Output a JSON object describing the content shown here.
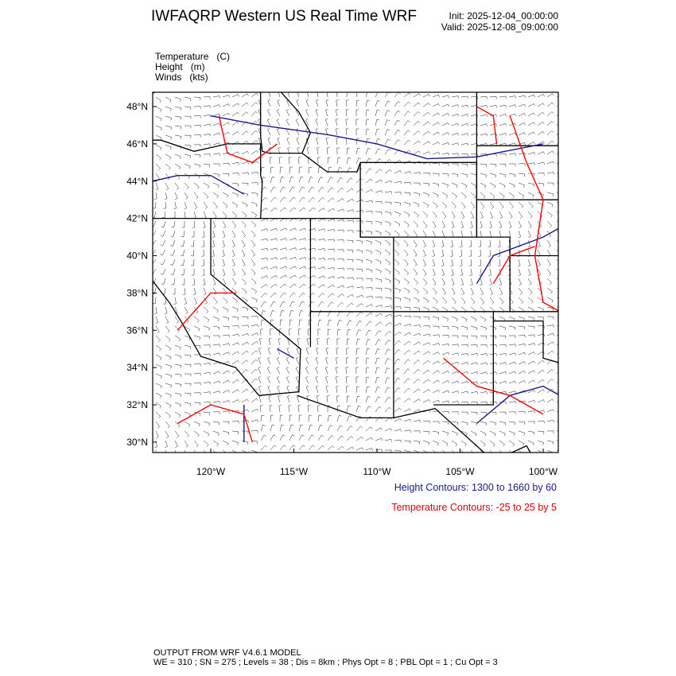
{
  "header": {
    "title": "IWFAQRP Western US Real Time WRF",
    "init": "Init: 2025-12-04_00:00:00",
    "valid": "Valid: 2025-12-08_09:00:00"
  },
  "fields": [
    "Temperature   (C)",
    "Height   (m)",
    "Winds   (kts)"
  ],
  "map": {
    "lat_labels": [
      "48°N",
      "46°N",
      "44°N",
      "42°N",
      "40°N",
      "38°N",
      "36°N",
      "34°N",
      "32°N",
      "30°N"
    ],
    "lon_labels": [
      "120°W",
      "115°W",
      "110°W",
      "105°W",
      "100°W"
    ],
    "extent": {
      "lon": [
        -123.6,
        -98.1
      ],
      "lat": [
        29.4,
        48.8
      ]
    },
    "colors": {
      "height": "#1a1a8c",
      "temperature": "#ff0000",
      "boundaries": "#000000"
    }
  },
  "legend": {
    "height": "Height Contours: 1300 to 1660 by 60",
    "temperature": "Temperature Contours: -25 to 25 by 5"
  },
  "footer": {
    "line1": "OUTPUT FROM WRF V4.6.1 MODEL",
    "line2": "WE = 310 ; SN = 275 ; Levels = 38 ; Dis = 8km ; Phys Opt = 8 ; PBL Opt = 1 ; Cu Opt = 3"
  }
}
